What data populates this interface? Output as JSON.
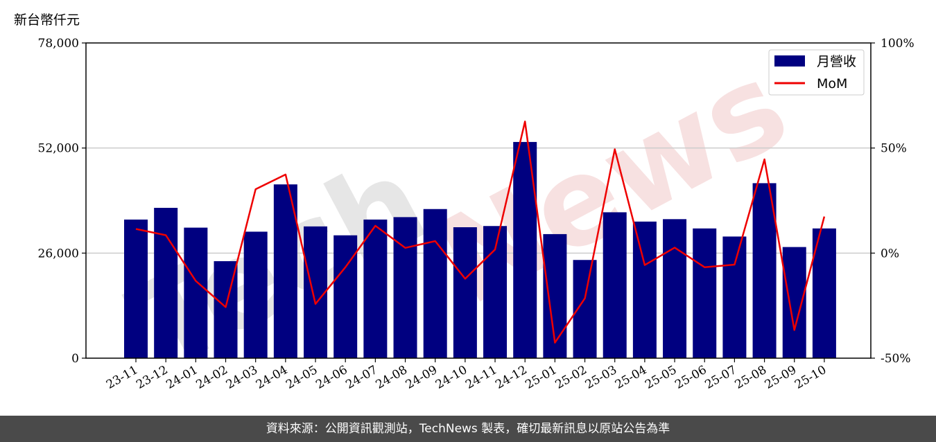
{
  "unit_label": "新台幣仟元",
  "footer_text": "資料來源：公開資訊觀測站，TechNews 製表，確切最新訊息以原站公告為準",
  "watermark": {
    "part1": "Tech",
    "part2": "News"
  },
  "colors": {
    "bar": "#000080",
    "line": "#ee0000",
    "grid": "#cccccc",
    "footer_bg": "#4a4a4a",
    "watermark_gray": "#e6e6e6",
    "watermark_pink": "#f7e1e1"
  },
  "chart_data": {
    "type": "bar",
    "categories": [
      "23-11",
      "23-12",
      "24-01",
      "24-02",
      "24-03",
      "24-04",
      "24-05",
      "24-06",
      "24-07",
      "24-08",
      "24-09",
      "24-10",
      "24-11",
      "24-12",
      "25-01",
      "25-02",
      "25-03",
      "25-04",
      "25-05",
      "25-06",
      "25-07",
      "25-08",
      "25-09",
      "25-10"
    ],
    "series": [
      {
        "name": "月營收",
        "type": "bar",
        "axis": "left",
        "values": [
          34300,
          37200,
          32300,
          24000,
          31300,
          43000,
          32600,
          30400,
          34300,
          34900,
          36900,
          32400,
          32700,
          53500,
          30700,
          24300,
          36100,
          33800,
          34400,
          32100,
          30100,
          43300,
          27500,
          32100
        ]
      },
      {
        "name": "MoM",
        "type": "line",
        "axis": "right",
        "values": [
          11.5,
          8.5,
          -13.2,
          -25.7,
          30.4,
          37.4,
          -24.2,
          -6.7,
          13.0,
          2.5,
          5.7,
          -12.2,
          1.7,
          62.6,
          -42.6,
          -21.5,
          49.4,
          -5.7,
          2.6,
          -6.7,
          -5.5,
          44.6,
          -36.6,
          17.4
        ]
      }
    ],
    "ylim_left": [
      0,
      78000
    ],
    "yticks_left": [
      0,
      26000,
      52000,
      78000
    ],
    "ytick_labels_left": [
      "0",
      "26,000",
      "52,000",
      "78,000"
    ],
    "ylim_right": [
      -50,
      100
    ],
    "yticks_right": [
      -50,
      0,
      50,
      100
    ],
    "ytick_labels_right": [
      "-50%",
      "0%",
      "50%",
      "100%"
    ],
    "grid": "horizontal",
    "legend_position": "top-right",
    "xlabel": "",
    "ylabel": "",
    "title": ""
  }
}
